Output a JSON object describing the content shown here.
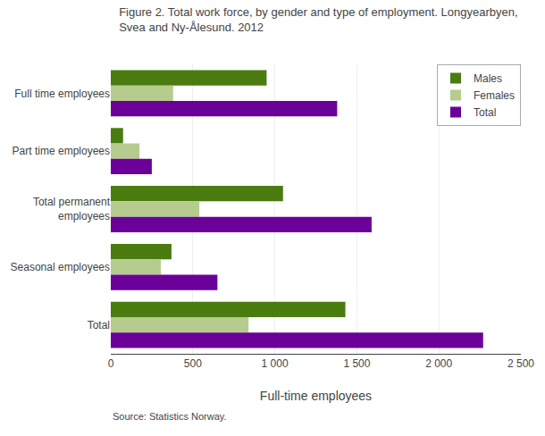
{
  "chart_data": {
    "type": "bar",
    "orientation": "horizontal",
    "title": "Figure 2. Total work force, by gender and type of employment. Longyearbyen,\nSvea and Ny-Ålesund. 2012",
    "categories": [
      "Full time employees",
      "Part time employees",
      "Total permanent\nemployees",
      "Seasonal employees",
      "Total"
    ],
    "series": [
      {
        "name": "Males",
        "color": "#4a7c10",
        "values": [
          950,
          75,
          1050,
          370,
          1430
        ]
      },
      {
        "name": "Females",
        "color": "#b5cc8e",
        "values": [
          380,
          175,
          540,
          305,
          840
        ]
      },
      {
        "name": "Total",
        "color": "#6a0098",
        "values": [
          1380,
          250,
          1590,
          650,
          2270
        ]
      }
    ],
    "xlabel": "Full-time employees",
    "annotations": [
      "Source: Statistics Norway."
    ],
    "xlim": [
      0,
      2500
    ],
    "xticks": [
      0,
      500,
      {
        "value": 1000,
        "label": "1 000"
      },
      {
        "value": 1500,
        "label": "1 500"
      },
      {
        "value": 2000,
        "label": "2 000"
      },
      {
        "value": 2500,
        "label": "2 500"
      }
    ],
    "grid": true,
    "legend": "upper right"
  }
}
